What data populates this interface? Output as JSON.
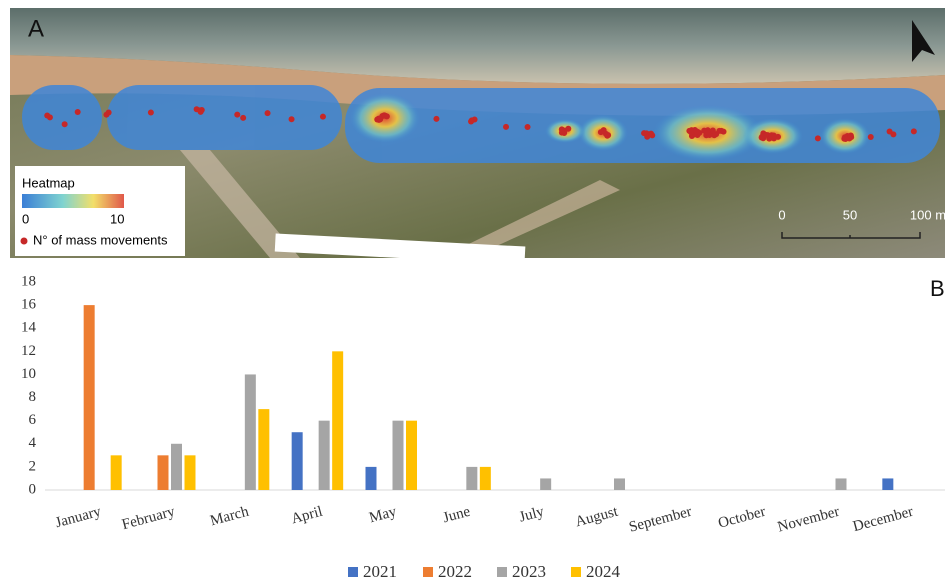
{
  "panel_a": {
    "label": "A",
    "legend": {
      "title": "Heatmap",
      "min": "0",
      "max": "10",
      "points": "N° of mass movements"
    },
    "scale": [
      "0",
      "50",
      "100 m"
    ]
  },
  "chart_data": {
    "type": "bar",
    "panel_label": "B",
    "categories": [
      "January",
      "February",
      "March",
      "April",
      "May",
      "June",
      "July",
      "August",
      "September",
      "October",
      "November",
      "December"
    ],
    "series": [
      {
        "name": "2021",
        "color": "#4472c4",
        "values": [
          0,
          0,
          0,
          5,
          2,
          0,
          0,
          0,
          0,
          0,
          0,
          1
        ]
      },
      {
        "name": "2022",
        "color": "#ed7d31",
        "values": [
          16,
          3,
          0,
          0,
          0,
          0,
          0,
          0,
          0,
          0,
          0,
          0
        ]
      },
      {
        "name": "2023",
        "color": "#a5a5a5",
        "values": [
          0,
          4,
          10,
          6,
          6,
          2,
          1,
          1,
          0,
          0,
          1,
          0
        ]
      },
      {
        "name": "2024",
        "color": "#ffc000",
        "values": [
          3,
          3,
          7,
          12,
          6,
          2,
          0,
          0,
          0,
          0,
          0,
          0
        ]
      }
    ],
    "ylim": [
      0,
      18
    ],
    "yticks": [
      0,
      2,
      4,
      6,
      8,
      10,
      12,
      14,
      16,
      18
    ],
    "grid": false
  }
}
